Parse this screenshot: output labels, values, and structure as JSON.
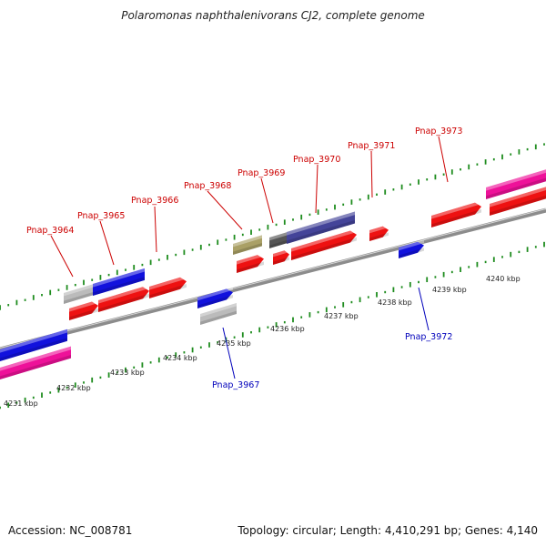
{
  "title": "Polaromonas naphthalenivorans CJ2, complete genome",
  "footer": {
    "accession": "Accession: NC_008781",
    "topology": "Topology: circular; Length: 4,410,291 bp; Genes: 4,140"
  },
  "colors": {
    "backbone": "#8c8c8c",
    "tick": "#1e8c1e",
    "forward_label": "#cc0000",
    "reverse_label": "#0000bb",
    "cds_red": "#ee1111",
    "cds_blue": "#1111dd",
    "cds_magenta": "#ee1199",
    "cds_navy": "#444499",
    "cds_grey": "#bbbbbb",
    "cds_darkgrey": "#555555",
    "cds_olive": "#aaa066"
  },
  "scale_labels": [
    "4231 kbp",
    "4232 kbp",
    "4233 kbp",
    "4234 kbp",
    "4235 kbp",
    "4236 kbp",
    "4237 kbp",
    "4238 kbp",
    "4239 kbp",
    "4240 kbp"
  ],
  "gene_labels_forward": [
    "Pnap_3964",
    "Pnap_3965",
    "Pnap_3966",
    "Pnap_3968",
    "Pnap_3969",
    "Pnap_3970",
    "Pnap_3971",
    "Pnap_3973"
  ],
  "gene_labels_reverse": [
    "Pnap_3967",
    "Pnap_3972"
  ]
}
